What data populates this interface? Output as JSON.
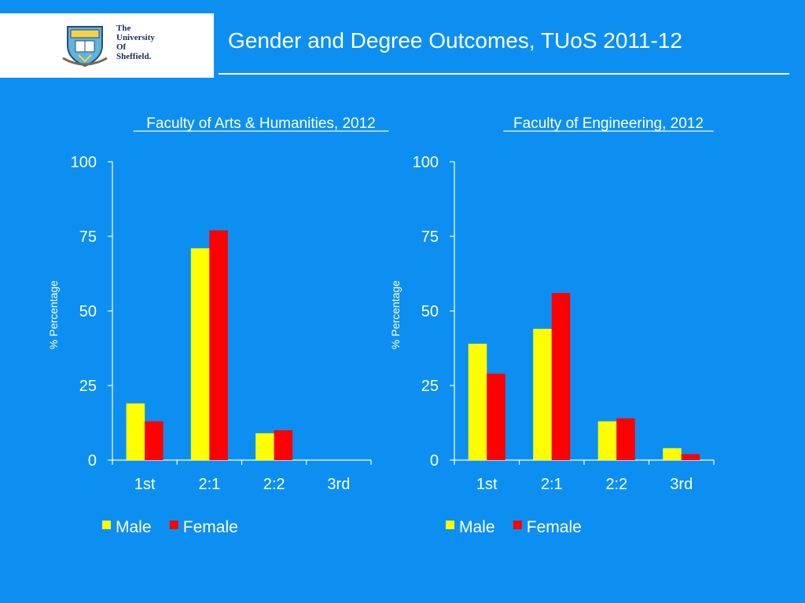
{
  "slide": {
    "title": "Gender and Degree Outcomes, TUoS 2011-12"
  },
  "logo": {
    "name": "university-of-sheffield-logo",
    "lines": [
      "The",
      "University",
      "Of",
      "Sheffield."
    ]
  },
  "colors": {
    "background": "#0d8ff2",
    "male": "#ffff00",
    "female": "#ff0000",
    "text": "#ffffff",
    "axis": "#ffffff"
  },
  "chart_data": [
    {
      "type": "bar",
      "title": "Faculty of Arts & Humanities, 2012",
      "ylabel": "% Percentage",
      "xlabel": "",
      "categories": [
        "1st",
        "2:1",
        "2:2",
        "3rd"
      ],
      "ylim": [
        0,
        100
      ],
      "yticks": [
        0,
        25,
        50,
        75,
        100
      ],
      "series": [
        {
          "name": "Male",
          "color": "#ffff00",
          "values": [
            19,
            71,
            9,
            0
          ]
        },
        {
          "name": "Female",
          "color": "#ff0000",
          "values": [
            13,
            77,
            10,
            0
          ]
        }
      ],
      "legend": "bottom",
      "grid": false
    },
    {
      "type": "bar",
      "title": "Faculty of Engineering, 2012",
      "ylabel": "% Percentage",
      "xlabel": "",
      "categories": [
        "1st",
        "2:1",
        "2:2",
        "3rd"
      ],
      "ylim": [
        0,
        100
      ],
      "yticks": [
        0,
        25,
        50,
        75,
        100
      ],
      "series": [
        {
          "name": "Male",
          "color": "#ffff00",
          "values": [
            39,
            44,
            13,
            4
          ]
        },
        {
          "name": "Female",
          "color": "#ff0000",
          "values": [
            29,
            56,
            14,
            2
          ]
        }
      ],
      "legend": "bottom",
      "grid": false
    }
  ]
}
